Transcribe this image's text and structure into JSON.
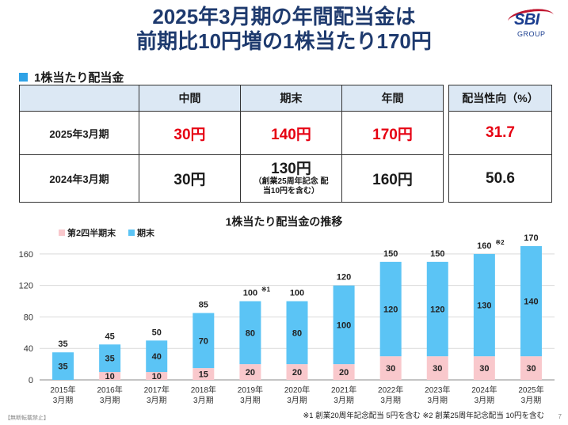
{
  "title": {
    "line1": "2025年3月期の年間配当金は",
    "line2": "前期比10円増の1株当たり170円"
  },
  "logo": {
    "brand": "SBI",
    "sub": "GROUP"
  },
  "section": {
    "heading": "1株当たり配当金"
  },
  "dividend_table": {
    "headers": [
      "",
      "中間",
      "期末",
      "年間"
    ],
    "rows": [
      {
        "label": "2025年3月期",
        "interim": "30円",
        "year_end": "140円",
        "annual": "170円",
        "year_end_note": ""
      },
      {
        "label": "2024年3月期",
        "interim": "30円",
        "year_end": "130円",
        "annual": "160円",
        "year_end_note": "（創業25周年記念 配当10円を含む）"
      }
    ]
  },
  "payout_table": {
    "header": "配当性向（%）",
    "values": [
      "31.7",
      "50.6"
    ]
  },
  "chart_title": "1株当たり配当金の推移",
  "chart_data": {
    "type": "bar",
    "stacked": true,
    "categories": [
      "2015年 3月期",
      "2016年 3月期",
      "2017年 3月期",
      "2018年 3月期",
      "2019年 3月期",
      "2020年 3月期",
      "2021年 3月期",
      "2022年 3月期",
      "2023年 3月期",
      "2024年 3月期",
      "2025年 3月期"
    ],
    "series": [
      {
        "name": "第2四半期末",
        "color": "#f9c8cc",
        "values": [
          0,
          10,
          10,
          15,
          20,
          20,
          20,
          30,
          30,
          30,
          30
        ]
      },
      {
        "name": "期末",
        "color": "#5bc4f5",
        "values": [
          35,
          35,
          40,
          70,
          80,
          80,
          100,
          120,
          120,
          130,
          140
        ]
      }
    ],
    "totals": [
      35,
      45,
      50,
      85,
      100,
      100,
      120,
      150,
      150,
      160,
      170
    ],
    "total_marks": [
      "",
      "",
      "",
      "",
      "※1",
      "",
      "",
      "",
      "",
      "※2",
      ""
    ],
    "yticks": [
      0,
      40,
      80,
      120,
      160
    ],
    "ylim": [
      0,
      175
    ],
    "legend_position": "top-left",
    "grid": true
  },
  "footnote": "※1 創業20周年記念配当 5円を含む ※2 創業25周年記念配当 10円を含む",
  "disclaimer": "【無断転載禁止】",
  "page_number": "7"
}
